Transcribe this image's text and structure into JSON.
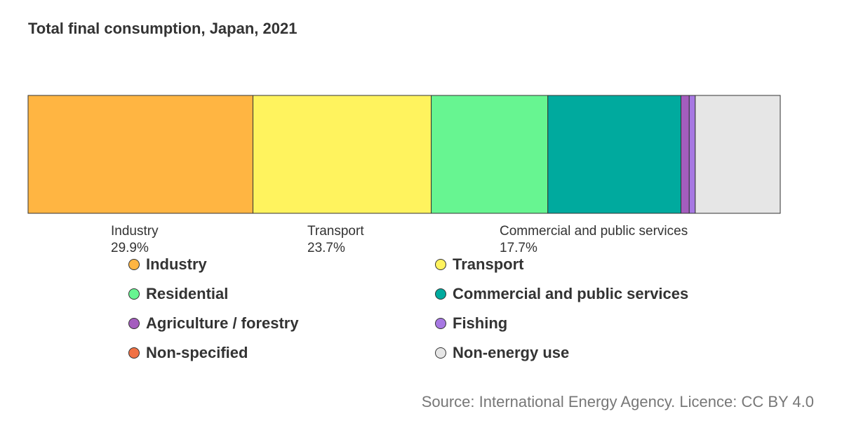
{
  "chart_data": {
    "type": "bar",
    "orientation": "horizontal-stacked",
    "title": "Total final consumption, Japan, 2021",
    "source": "Source: International Energy Agency. Licence: CC BY 4.0",
    "unit": "%",
    "series": [
      {
        "name": "Industry",
        "value": 29.9,
        "color": "#FFB542",
        "label": "Industry",
        "value_label": "29.9%"
      },
      {
        "name": "Transport",
        "value": 23.7,
        "color": "#FFF35E",
        "label": "Transport",
        "value_label": "23.7%"
      },
      {
        "name": "Residential",
        "value": 15.5,
        "color": "#67F591",
        "label": "",
        "value_label": ""
      },
      {
        "name": "Commercial and public services",
        "value": 17.7,
        "color": "#00AA9E",
        "label": "Commercial and public services",
        "value_label": "17.7%"
      },
      {
        "name": "Agriculture / forestry",
        "value": 1.1,
        "color": "#A45DBE",
        "label": "",
        "value_label": ""
      },
      {
        "name": "Fishing",
        "value": 0.8,
        "color": "#A778E3",
        "label": "",
        "value_label": ""
      },
      {
        "name": "Non-specified",
        "value": 0.0,
        "color": "#F07144",
        "label": "",
        "value_label": ""
      },
      {
        "name": "Non-energy use",
        "value": 11.3,
        "color": "#E6E6E6",
        "label": "",
        "value_label": ""
      }
    ],
    "legend_position": "bottom",
    "grid": false
  }
}
